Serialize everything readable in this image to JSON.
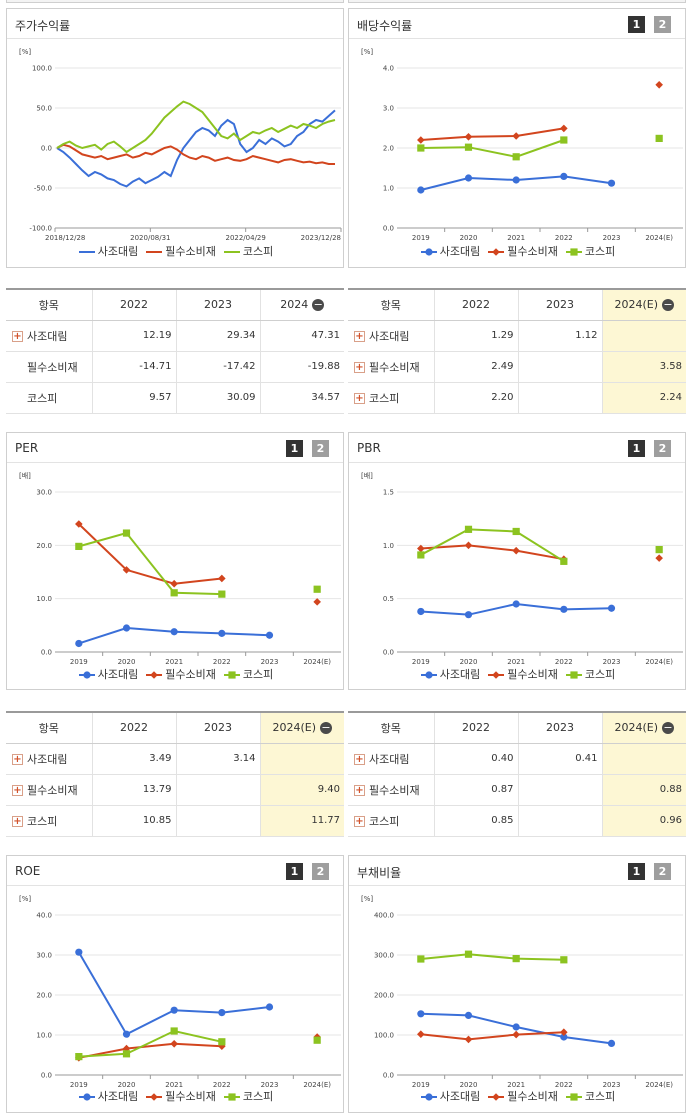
{
  "colors": {
    "company": "#3a6fd8",
    "sector": "#d2451e",
    "kospi": "#8cc320",
    "grid": "#e6e6e6",
    "highlight": "#fdf7d4"
  },
  "legend": [
    "사조대림",
    "필수소비재",
    "코스피"
  ],
  "pager": [
    "1",
    "2"
  ],
  "panels": {
    "stock": {
      "title": "주가수익률",
      "unit": "[%]"
    },
    "dividend": {
      "title": "배당수익률",
      "unit": "[%]"
    },
    "per": {
      "title": "PER",
      "unit": "[배]"
    },
    "pbr": {
      "title": "PBR",
      "unit": "[배]"
    },
    "roe": {
      "title": "ROE",
      "unit": "[%]"
    },
    "debt": {
      "title": "부채비율",
      "unit": "[%]"
    }
  },
  "tables": {
    "stock": {
      "headers": [
        "항목",
        "2022",
        "2023",
        "2024"
      ],
      "rows": [
        {
          "label": "사조대림",
          "values": [
            "12.19",
            "29.34",
            "47.31"
          ],
          "expandable": true
        },
        {
          "label": "필수소비재",
          "values": [
            "-14.71",
            "-17.42",
            "-19.88"
          ],
          "expandable": false
        },
        {
          "label": "코스피",
          "values": [
            "9.57",
            "30.09",
            "34.57"
          ],
          "expandable": false
        }
      ]
    },
    "dividend": {
      "headers": [
        "항목",
        "2022",
        "2023",
        "2024(E)"
      ],
      "rows": [
        {
          "label": "사조대림",
          "values": [
            "1.29",
            "1.12",
            ""
          ],
          "expandable": true
        },
        {
          "label": "필수소비재",
          "values": [
            "2.49",
            "",
            "3.58"
          ],
          "expandable": true
        },
        {
          "label": "코스피",
          "values": [
            "2.20",
            "",
            "2.24"
          ],
          "expandable": true
        }
      ]
    },
    "per": {
      "headers": [
        "항목",
        "2022",
        "2023",
        "2024(E)"
      ],
      "rows": [
        {
          "label": "사조대림",
          "values": [
            "3.49",
            "3.14",
            ""
          ],
          "expandable": true
        },
        {
          "label": "필수소비재",
          "values": [
            "13.79",
            "",
            "9.40"
          ],
          "expandable": true
        },
        {
          "label": "코스피",
          "values": [
            "10.85",
            "",
            "11.77"
          ],
          "expandable": true
        }
      ]
    },
    "pbr": {
      "headers": [
        "항목",
        "2022",
        "2023",
        "2024(E)"
      ],
      "rows": [
        {
          "label": "사조대림",
          "values": [
            "0.40",
            "0.41",
            ""
          ],
          "expandable": true
        },
        {
          "label": "필수소비재",
          "values": [
            "0.87",
            "",
            "0.88"
          ],
          "expandable": true
        },
        {
          "label": "코스피",
          "values": [
            "0.85",
            "",
            "0.96"
          ],
          "expandable": true
        }
      ]
    }
  },
  "chart_data": [
    {
      "id": "stock",
      "type": "line",
      "ylim": [
        -100,
        100
      ],
      "yticks": [
        "100.0",
        "50.0",
        "0.0",
        "-50.0",
        "-100.0"
      ],
      "ytick_values": [
        100,
        50,
        0,
        -50,
        -100
      ],
      "xticks": [
        "2018/12/28",
        "2020/08/31",
        "2022/04/29",
        "2023/12/28"
      ],
      "series": [
        {
          "name": "사조대림",
          "values": [
            0,
            -5,
            -12,
            -20,
            -28,
            -35,
            -30,
            -33,
            -38,
            -40,
            -45,
            -48,
            -42,
            -38,
            -44,
            -40,
            -36,
            -30,
            -35,
            -15,
            0,
            10,
            20,
            25,
            22,
            15,
            28,
            35,
            30,
            5,
            -5,
            0,
            10,
            5,
            12,
            8,
            2,
            5,
            15,
            20,
            30,
            35,
            33,
            40,
            47
          ]
        },
        {
          "name": "필수소비재",
          "values": [
            0,
            4,
            2,
            -3,
            -8,
            -10,
            -12,
            -10,
            -14,
            -12,
            -10,
            -8,
            -12,
            -10,
            -6,
            -8,
            -4,
            0,
            2,
            -2,
            -8,
            -12,
            -14,
            -10,
            -12,
            -16,
            -14,
            -12,
            -15,
            -16,
            -14,
            -10,
            -12,
            -14,
            -16,
            -18,
            -15,
            -14,
            -16,
            -18,
            -17,
            -19,
            -18,
            -20,
            -20
          ]
        },
        {
          "name": "코스피",
          "values": [
            0,
            5,
            8,
            3,
            0,
            2,
            4,
            -2,
            5,
            8,
            2,
            -5,
            0,
            5,
            10,
            18,
            28,
            38,
            45,
            52,
            58,
            55,
            50,
            45,
            35,
            25,
            15,
            12,
            18,
            10,
            15,
            20,
            18,
            22,
            25,
            20,
            24,
            28,
            25,
            30,
            28,
            25,
            30,
            33,
            35
          ]
        }
      ]
    },
    {
      "id": "dividend",
      "type": "line",
      "ylim": [
        0,
        4
      ],
      "yticks": [
        "4.0",
        "3.0",
        "2.0",
        "1.0",
        "0.0"
      ],
      "ytick_values": [
        4,
        3,
        2,
        1,
        0
      ],
      "categories": [
        "2019",
        "2020",
        "2021",
        "2022",
        "2023",
        "2024(E)"
      ],
      "series": [
        {
          "name": "사조대림",
          "values": [
            0.95,
            1.25,
            1.2,
            1.29,
            1.12,
            null
          ]
        },
        {
          "name": "필수소비재",
          "values": [
            2.2,
            2.28,
            2.3,
            2.49,
            null,
            3.58
          ]
        },
        {
          "name": "코스피",
          "values": [
            2.0,
            2.02,
            1.78,
            2.2,
            null,
            2.24
          ]
        }
      ]
    },
    {
      "id": "per",
      "type": "line",
      "ylim": [
        0,
        30
      ],
      "yticks": [
        "30.0",
        "20.0",
        "10.0",
        "0.0"
      ],
      "ytick_values": [
        30,
        20,
        10,
        0
      ],
      "categories": [
        "2019",
        "2020",
        "2021",
        "2022",
        "2023",
        "2024(E)"
      ],
      "series": [
        {
          "name": "사조대림",
          "values": [
            1.6,
            4.5,
            3.8,
            3.49,
            3.14,
            null
          ]
        },
        {
          "name": "필수소비재",
          "values": [
            24.0,
            15.4,
            12.8,
            13.79,
            null,
            9.4
          ]
        },
        {
          "name": "코스피",
          "values": [
            19.8,
            22.3,
            11.1,
            10.85,
            null,
            11.77
          ]
        }
      ]
    },
    {
      "id": "pbr",
      "type": "line",
      "ylim": [
        0,
        1.5
      ],
      "yticks": [
        "1.5",
        "1.0",
        "0.5",
        "0.0"
      ],
      "ytick_values": [
        1.5,
        1.0,
        0.5,
        0
      ],
      "categories": [
        "2019",
        "2020",
        "2021",
        "2022",
        "2023",
        "2024(E)"
      ],
      "series": [
        {
          "name": "사조대림",
          "values": [
            0.38,
            0.35,
            0.45,
            0.4,
            0.41,
            null
          ]
        },
        {
          "name": "필수소비재",
          "values": [
            0.97,
            1.0,
            0.95,
            0.87,
            null,
            0.88
          ]
        },
        {
          "name": "코스피",
          "values": [
            0.91,
            1.15,
            1.13,
            0.85,
            null,
            0.96
          ]
        }
      ]
    },
    {
      "id": "roe",
      "type": "line",
      "ylim": [
        0,
        40
      ],
      "yticks": [
        "40.0",
        "30.0",
        "20.0",
        "10.0",
        "0.0"
      ],
      "ytick_values": [
        40,
        30,
        20,
        10,
        0
      ],
      "categories": [
        "2019",
        "2020",
        "2021",
        "2022",
        "2023",
        "2024(E)"
      ],
      "series": [
        {
          "name": "사조대림",
          "values": [
            30.7,
            10.2,
            16.2,
            15.6,
            17.0,
            null
          ]
        },
        {
          "name": "필수소비재",
          "values": [
            4.3,
            6.6,
            7.8,
            7.2,
            null,
            9.5
          ]
        },
        {
          "name": "코스피",
          "values": [
            4.6,
            5.3,
            11.0,
            8.3,
            null,
            8.7
          ]
        }
      ]
    },
    {
      "id": "debt",
      "type": "line",
      "ylim": [
        0,
        400
      ],
      "yticks": [
        "400.0",
        "300.0",
        "200.0",
        "100.0",
        "0.0"
      ],
      "ytick_values": [
        400,
        300,
        200,
        100,
        0
      ],
      "categories": [
        "2019",
        "2020",
        "2021",
        "2022",
        "2023",
        "2024(E)"
      ],
      "series": [
        {
          "name": "사조대림",
          "values": [
            153,
            149,
            120,
            95,
            79,
            null
          ]
        },
        {
          "name": "필수소비재",
          "values": [
            102,
            89,
            101,
            107,
            null,
            null
          ]
        },
        {
          "name": "코스피",
          "values": [
            290,
            302,
            291,
            288,
            null,
            null
          ]
        }
      ]
    }
  ]
}
